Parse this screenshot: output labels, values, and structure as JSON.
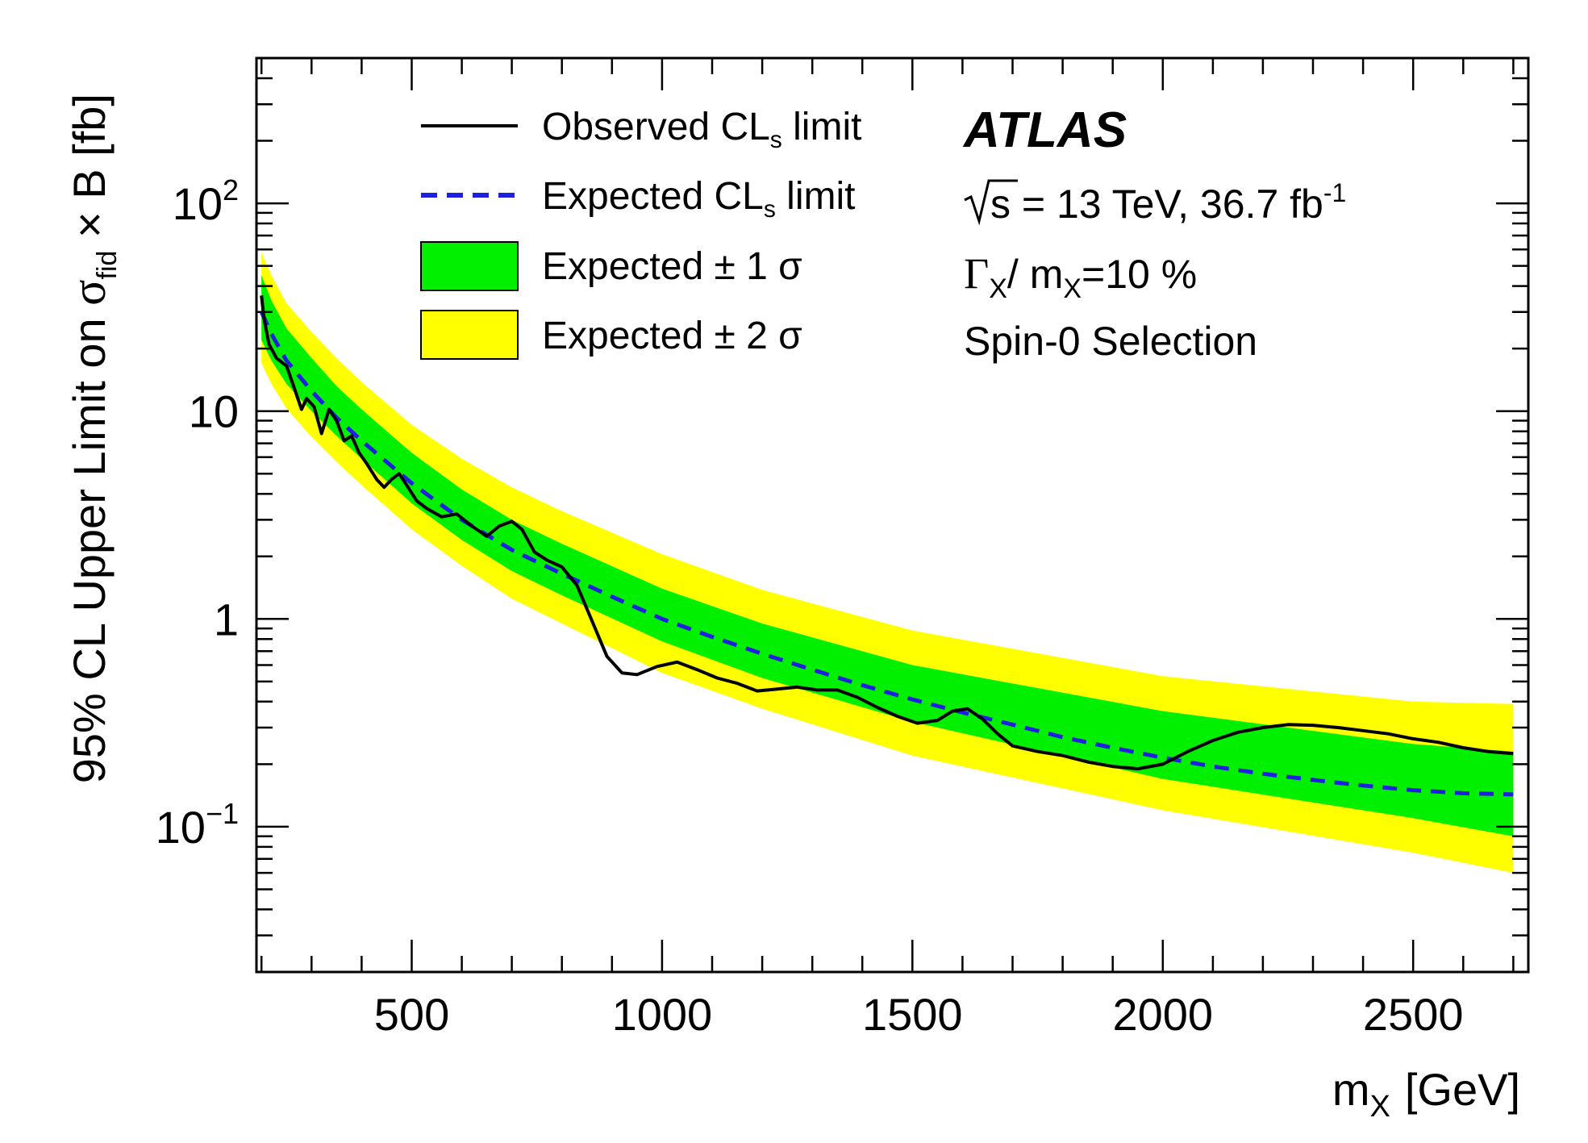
{
  "chart_data": {
    "type": "line",
    "xlabel": "m",
    "xlabel_sub": "X",
    "xlabel_unit": "[GeV]",
    "ylabel_prefix": "95% CL Upper Limit on ",
    "ylabel_sigma": "σ",
    "ylabel_sub": "fid",
    "ylabel_suffix": " × B [fb]",
    "x_scale": "linear",
    "y_scale": "log",
    "xlim": [
      190,
      2730
    ],
    "ylim": [
      0.02,
      500
    ],
    "x_ticks": [
      {
        "value": 500,
        "label": "500"
      },
      {
        "value": 1000,
        "label": "1000"
      },
      {
        "value": 1500,
        "label": "1500"
      },
      {
        "value": 2000,
        "label": "2000"
      },
      {
        "value": 2500,
        "label": "2500"
      }
    ],
    "y_ticks": [
      {
        "value": 0.1,
        "base": "10",
        "exp": "−1"
      },
      {
        "value": 1,
        "base": "1",
        "exp": ""
      },
      {
        "value": 10,
        "base": "10",
        "exp": ""
      },
      {
        "value": 100,
        "base": "10",
        "exp": "2"
      }
    ],
    "atlas_label": "ATLAS",
    "energy_text": "s = 13 TeV, 36.7 fb",
    "energy_sup": "-1",
    "width_text": {
      "gamma": "Γ",
      "sub1": "X",
      "mid": "/ m",
      "sub2": "X",
      "tail": "=10 %"
    },
    "selection_text": "Spin-0 Selection",
    "legend": [
      {
        "key": "observed",
        "label": "Observed CL",
        "sub": "s",
        "tail": " limit"
      },
      {
        "key": "expected",
        "label": "Expected CL",
        "sub": "s",
        "tail": " limit"
      },
      {
        "key": "one_sigma",
        "label": "Expected ± 1 σ"
      },
      {
        "key": "two_sigma",
        "label": "Expected ± 2 σ"
      }
    ],
    "colors": {
      "observed": "#000000",
      "expected": "#1f1fe0",
      "one_sigma": "#00f000",
      "two_sigma": "#ffff00"
    },
    "bands": {
      "x": [
        200,
        220,
        250,
        300,
        350,
        400,
        500,
        600,
        700,
        800,
        1000,
        1200,
        1500,
        2000,
        2500,
        2700
      ],
      "two_sigma_low": [
        17,
        13.5,
        10.3,
        7.5,
        5.7,
        4.4,
        2.7,
        1.8,
        1.25,
        0.95,
        0.55,
        0.37,
        0.22,
        0.12,
        0.075,
        0.06
      ],
      "one_sigma_low": [
        22,
        17.5,
        13.5,
        10,
        7.6,
        5.9,
        3.6,
        2.4,
        1.7,
        1.3,
        0.78,
        0.52,
        0.32,
        0.17,
        0.11,
        0.09
      ],
      "one_sigma_high": [
        45,
        34,
        25,
        18,
        13.2,
        10.2,
        6.3,
        4.2,
        3.0,
        2.3,
        1.4,
        0.95,
        0.6,
        0.36,
        0.25,
        0.23
      ],
      "two_sigma_high": [
        58,
        45,
        33,
        24,
        18,
        13.8,
        8.6,
        5.9,
        4.3,
        3.3,
        2.05,
        1.38,
        0.88,
        0.53,
        0.4,
        0.39
      ]
    },
    "series": [
      {
        "key": "expected",
        "name": "Expected CLs limit",
        "x": [
          200,
          220,
          250,
          300,
          350,
          400,
          500,
          600,
          700,
          800,
          900,
          1000,
          1100,
          1200,
          1300,
          1400,
          1500,
          1600,
          1700,
          1800,
          1900,
          2000,
          2100,
          2200,
          2300,
          2400,
          2500,
          2600,
          2700
        ],
        "y": [
          30,
          23.5,
          17.5,
          12.5,
          9.3,
          7.2,
          4.5,
          3.0,
          2.15,
          1.65,
          1.28,
          1.0,
          0.82,
          0.68,
          0.57,
          0.48,
          0.41,
          0.355,
          0.31,
          0.27,
          0.24,
          0.215,
          0.195,
          0.18,
          0.168,
          0.158,
          0.15,
          0.145,
          0.143
        ]
      },
      {
        "key": "observed",
        "name": "Observed CLs limit",
        "x": [
          200,
          205,
          215,
          230,
          250,
          265,
          280,
          290,
          305,
          320,
          335,
          350,
          365,
          380,
          395,
          410,
          430,
          445,
          460,
          475,
          490,
          510,
          530,
          560,
          590,
          620,
          650,
          675,
          700,
          720,
          745,
          770,
          800,
          830,
          860,
          890,
          920,
          950,
          990,
          1030,
          1070,
          1110,
          1150,
          1190,
          1230,
          1270,
          1310,
          1350,
          1390,
          1430,
          1470,
          1510,
          1550,
          1580,
          1610,
          1640,
          1670,
          1700,
          1750,
          1800,
          1850,
          1900,
          1950,
          2000,
          2050,
          2100,
          2150,
          2200,
          2250,
          2300,
          2350,
          2400,
          2450,
          2500,
          2550,
          2600,
          2650,
          2700
        ],
        "y": [
          36,
          28,
          21,
          18,
          16.5,
          13,
          10.2,
          11.5,
          10.5,
          7.8,
          10.2,
          9,
          7.2,
          7.6,
          6.3,
          5.6,
          4.7,
          4.3,
          4.7,
          5.0,
          4.4,
          3.7,
          3.4,
          3.1,
          3.2,
          2.8,
          2.5,
          2.8,
          2.95,
          2.7,
          2.1,
          1.92,
          1.78,
          1.45,
          0.98,
          0.66,
          0.55,
          0.54,
          0.59,
          0.62,
          0.57,
          0.52,
          0.49,
          0.45,
          0.46,
          0.47,
          0.455,
          0.455,
          0.42,
          0.375,
          0.34,
          0.315,
          0.325,
          0.36,
          0.37,
          0.33,
          0.28,
          0.245,
          0.23,
          0.22,
          0.205,
          0.195,
          0.19,
          0.2,
          0.23,
          0.26,
          0.285,
          0.3,
          0.31,
          0.308,
          0.3,
          0.29,
          0.28,
          0.265,
          0.255,
          0.24,
          0.23,
          0.225
        ]
      }
    ]
  }
}
